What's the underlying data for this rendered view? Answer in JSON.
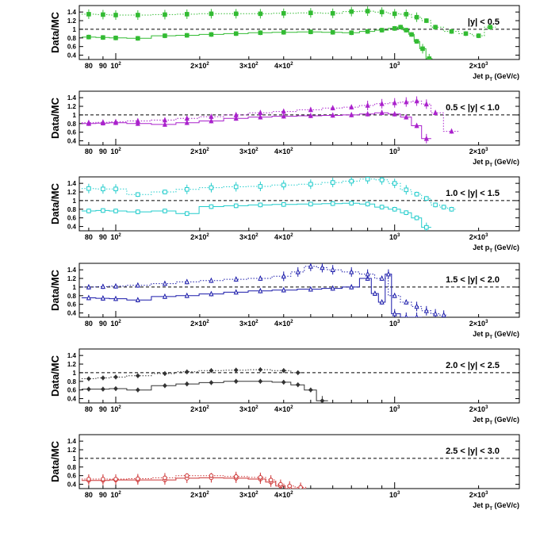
{
  "chart_data": [
    {
      "type": "line",
      "panel_label": "|y| < 0.5",
      "ylabel": "Data/MC",
      "xlabel": "Jet p",
      "xlabel_sub": "T",
      "xlabel_unit": " (GeV/c)",
      "xscale": "log",
      "xlim": [
        74,
        2800
      ],
      "ylim": [
        0.3,
        1.55
      ],
      "reference_line": 1.0,
      "color": "#33bb33",
      "marker": "square-filled",
      "series": [
        {
          "style": "solid",
          "x": [
            80,
            90,
            100,
            120,
            150,
            180,
            220,
            270,
            330,
            400,
            500,
            600,
            700,
            800,
            900,
            1000,
            1050,
            1100,
            1150,
            1200,
            1260,
            1330
          ],
          "y": [
            0.82,
            0.81,
            0.8,
            0.79,
            0.85,
            0.86,
            0.88,
            0.9,
            0.92,
            0.93,
            0.94,
            0.93,
            0.92,
            0.95,
            0.98,
            1.02,
            1.05,
            0.98,
            0.88,
            0.72,
            0.55,
            0.32
          ]
        },
        {
          "style": "dotted",
          "x": [
            80,
            90,
            100,
            120,
            150,
            180,
            220,
            270,
            330,
            400,
            500,
            600,
            700,
            800,
            900,
            1000,
            1100,
            1200,
            1300,
            1400,
            1600,
            1800,
            2000,
            2200
          ],
          "y": [
            1.35,
            1.34,
            1.33,
            1.33,
            1.34,
            1.35,
            1.36,
            1.36,
            1.36,
            1.37,
            1.38,
            1.37,
            1.41,
            1.42,
            1.4,
            1.36,
            1.35,
            1.28,
            1.2,
            1.05,
            0.95,
            0.9,
            0.85,
            1.05
          ]
        }
      ]
    },
    {
      "type": "line",
      "panel_label": "0.5 < |y| < 1.0",
      "ylabel": "Data/MC",
      "xlabel": "Jet p",
      "xlabel_sub": "T",
      "xlabel_unit": " (GeV/c)",
      "xscale": "log",
      "xlim": [
        74,
        2800
      ],
      "ylim": [
        0.3,
        1.55
      ],
      "reference_line": 1.0,
      "color": "#aa22cc",
      "marker": "triangle-filled",
      "series": [
        {
          "style": "solid",
          "x": [
            80,
            90,
            100,
            120,
            150,
            180,
            220,
            270,
            330,
            400,
            500,
            600,
            700,
            800,
            900,
            1000,
            1100,
            1200,
            1300
          ],
          "y": [
            0.8,
            0.81,
            0.82,
            0.8,
            0.78,
            0.82,
            0.86,
            0.92,
            0.95,
            0.97,
            0.98,
            0.99,
            1.0,
            1.02,
            1.05,
            1.02,
            0.95,
            0.75,
            0.45
          ]
        },
        {
          "style": "dotted",
          "x": [
            80,
            90,
            100,
            120,
            150,
            180,
            220,
            270,
            330,
            400,
            500,
            600,
            700,
            800,
            900,
            1000,
            1100,
            1200,
            1300,
            1400,
            1600
          ],
          "y": [
            0.82,
            0.83,
            0.84,
            0.86,
            0.88,
            0.92,
            0.96,
            1.0,
            1.05,
            1.08,
            1.12,
            1.16,
            1.18,
            1.22,
            1.26,
            1.28,
            1.3,
            1.32,
            1.25,
            1.05,
            0.62
          ]
        }
      ]
    },
    {
      "type": "line",
      "panel_label": "1.0 < |y| < 1.5",
      "ylabel": "Data/MC",
      "xlabel": "Jet p",
      "xlabel_sub": "T",
      "xlabel_unit": " (GeV/c)",
      "xscale": "log",
      "xlim": [
        74,
        2800
      ],
      "ylim": [
        0.3,
        1.55
      ],
      "reference_line": 1.0,
      "color": "#22cccc",
      "marker": "square-open",
      "series": [
        {
          "style": "solid",
          "x": [
            80,
            90,
            100,
            120,
            150,
            180,
            220,
            270,
            330,
            400,
            500,
            600,
            700,
            800,
            900,
            1000,
            1100,
            1200,
            1300
          ],
          "y": [
            0.76,
            0.77,
            0.76,
            0.74,
            0.76,
            0.7,
            0.86,
            0.88,
            0.9,
            0.91,
            0.92,
            0.93,
            0.94,
            0.92,
            0.85,
            0.8,
            0.72,
            0.6,
            0.38
          ]
        },
        {
          "style": "dotted",
          "x": [
            80,
            90,
            100,
            120,
            150,
            180,
            220,
            270,
            330,
            400,
            500,
            600,
            700,
            800,
            900,
            1000,
            1100,
            1200,
            1300,
            1400,
            1500,
            1600
          ],
          "y": [
            1.28,
            1.27,
            1.27,
            1.14,
            1.2,
            1.26,
            1.3,
            1.32,
            1.33,
            1.36,
            1.38,
            1.42,
            1.45,
            1.5,
            1.48,
            1.4,
            1.25,
            1.15,
            1.05,
            0.9,
            0.85,
            0.8
          ]
        }
      ]
    },
    {
      "type": "line",
      "panel_label": "1.5 < |y| < 2.0",
      "ylabel": "Data/MC",
      "xlabel": "Jet p",
      "xlabel_sub": "T",
      "xlabel_unit": " (GeV/c)",
      "xscale": "log",
      "xlim": [
        74,
        2800
      ],
      "ylim": [
        0.3,
        1.55
      ],
      "reference_line": 1.0,
      "color": "#1a1aaa",
      "marker": "triangle-open",
      "series": [
        {
          "style": "solid",
          "x": [
            80,
            90,
            100,
            120,
            150,
            180,
            220,
            270,
            330,
            400,
            500,
            600,
            700,
            800,
            850,
            900,
            950,
            1000,
            1100,
            1200
          ],
          "y": [
            0.75,
            0.74,
            0.73,
            0.7,
            0.78,
            0.8,
            0.84,
            0.88,
            0.91,
            0.93,
            0.95,
            0.97,
            1.0,
            1.2,
            0.85,
            0.65,
            1.3,
            0.38,
            0.3,
            0.3
          ]
        },
        {
          "style": "dotted",
          "x": [
            80,
            90,
            100,
            120,
            150,
            180,
            220,
            270,
            330,
            400,
            450,
            500,
            550,
            600,
            700,
            800,
            900,
            1000,
            1100,
            1200,
            1300,
            1400,
            1500
          ],
          "y": [
            1.0,
            1.01,
            1.02,
            1.04,
            1.08,
            1.12,
            1.15,
            1.18,
            1.2,
            1.25,
            1.35,
            1.48,
            1.45,
            1.4,
            1.35,
            1.3,
            1.2,
            0.8,
            0.65,
            0.55,
            0.45,
            0.38,
            0.35
          ]
        }
      ]
    },
    {
      "type": "line",
      "panel_label": "2.0 < |y| < 2.5",
      "ylabel": "Data/MC",
      "xlabel": "Jet p",
      "xlabel_sub": "T",
      "xlabel_unit": " (GeV/c)",
      "xscale": "log",
      "xlim": [
        74,
        2800
      ],
      "ylim": [
        0.3,
        1.55
      ],
      "reference_line": 1.0,
      "color": "#333333",
      "marker": "diamond-filled",
      "series": [
        {
          "style": "solid",
          "x": [
            80,
            90,
            100,
            120,
            150,
            180,
            220,
            270,
            330,
            400,
            450,
            500,
            550
          ],
          "y": [
            0.62,
            0.62,
            0.63,
            0.6,
            0.7,
            0.74,
            0.77,
            0.8,
            0.8,
            0.78,
            0.72,
            0.6,
            0.35
          ]
        },
        {
          "style": "dotted",
          "x": [
            80,
            90,
            100,
            120,
            150,
            180,
            220,
            270,
            330,
            400,
            450
          ],
          "y": [
            0.86,
            0.88,
            0.9,
            0.93,
            0.98,
            1.02,
            1.05,
            1.06,
            1.07,
            1.05,
            1.0
          ]
        }
      ]
    },
    {
      "type": "line",
      "panel_label": "2.5 < |y| < 3.0",
      "ylabel": "Data/MC",
      "xlabel": "Jet p",
      "xlabel_sub": "T",
      "xlabel_unit": " (GeV/c)",
      "xscale": "log",
      "xlim": [
        74,
        2800
      ],
      "ylim": [
        0.3,
        1.55
      ],
      "reference_line": 1.0,
      "color": "#cc3333",
      "marker": "circle-open",
      "series": [
        {
          "style": "solid",
          "x": [
            80,
            90,
            100,
            120,
            150,
            180,
            220,
            270,
            330,
            360,
            390,
            420,
            460
          ],
          "y": [
            0.49,
            0.49,
            0.5,
            0.5,
            0.5,
            0.54,
            0.55,
            0.54,
            0.52,
            0.45,
            0.36,
            0.3,
            0.3
          ]
        },
        {
          "style": "dotted",
          "x": [
            80,
            90,
            100,
            120,
            150,
            180,
            220,
            270,
            330,
            360,
            390,
            420,
            460
          ],
          "y": [
            0.52,
            0.52,
            0.52,
            0.53,
            0.55,
            0.6,
            0.6,
            0.58,
            0.56,
            0.5,
            0.4,
            0.36,
            0.33
          ]
        }
      ]
    }
  ],
  "axis": {
    "yticks": [
      0.4,
      0.6,
      0.8,
      1.0,
      1.2,
      1.4
    ],
    "ytick_labels": [
      "0.4",
      "0.6",
      "0.8",
      "1",
      "1.2",
      "1.4"
    ],
    "xtick_labels": [
      {
        "v": 80,
        "t": "80"
      },
      {
        "v": 90,
        "t": "90"
      },
      {
        "v": 100,
        "base": "10",
        "exp": "2"
      },
      {
        "v": 200,
        "base": "2×10",
        "exp": "2"
      },
      {
        "v": 300,
        "base": "3×10",
        "exp": "2"
      },
      {
        "v": 400,
        "base": "4×10",
        "exp": "2"
      },
      {
        "v": 1000,
        "base": "10",
        "exp": "3"
      },
      {
        "v": 2000,
        "base": "2×10",
        "exp": "3"
      }
    ]
  }
}
